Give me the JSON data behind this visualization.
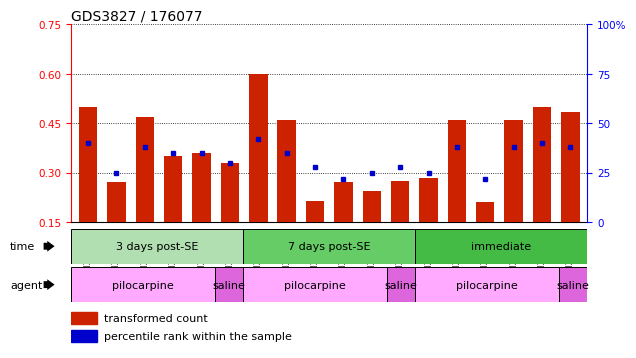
{
  "title": "GDS3827 / 176077",
  "samples": [
    "GSM367527",
    "GSM367528",
    "GSM367531",
    "GSM367532",
    "GSM367534",
    "GSM367718",
    "GSM367536",
    "GSM367538",
    "GSM367539",
    "GSM367540",
    "GSM367541",
    "GSM367719",
    "GSM367545",
    "GSM367546",
    "GSM367548",
    "GSM367549",
    "GSM367551",
    "GSM367721"
  ],
  "red_values": [
    0.5,
    0.27,
    0.47,
    0.35,
    0.36,
    0.33,
    0.6,
    0.46,
    0.215,
    0.27,
    0.245,
    0.275,
    0.285,
    0.46,
    0.21,
    0.46,
    0.5,
    0.485
  ],
  "blue_pct": [
    40,
    25,
    38,
    35,
    35,
    30,
    42,
    35,
    28,
    22,
    25,
    28,
    25,
    38,
    22,
    38,
    40,
    38
  ],
  "time_groups": [
    {
      "label": "3 days post-SE",
      "start": 0,
      "end": 6,
      "color": "#b2dfb2"
    },
    {
      "label": "7 days post-SE",
      "start": 6,
      "end": 12,
      "color": "#66cc66"
    },
    {
      "label": "immediate",
      "start": 12,
      "end": 18,
      "color": "#44bb44"
    }
  ],
  "agent_groups": [
    {
      "label": "pilocarpine",
      "start": 0,
      "end": 5,
      "color": "#ffaaff"
    },
    {
      "label": "saline",
      "start": 5,
      "end": 6,
      "color": "#dd66dd"
    },
    {
      "label": "pilocarpine",
      "start": 6,
      "end": 11,
      "color": "#ffaaff"
    },
    {
      "label": "saline",
      "start": 11,
      "end": 12,
      "color": "#dd66dd"
    },
    {
      "label": "pilocarpine",
      "start": 12,
      "end": 17,
      "color": "#ffaaff"
    },
    {
      "label": "saline",
      "start": 17,
      "end": 18,
      "color": "#dd66dd"
    }
  ],
  "ylim_left": [
    0.15,
    0.75
  ],
  "ylim_right": [
    0,
    100
  ],
  "yticks_left": [
    0.15,
    0.3,
    0.45,
    0.6,
    0.75
  ],
  "yticks_right": [
    0,
    25,
    50,
    75,
    100
  ],
  "bar_color": "#cc2200",
  "dot_color": "#0000cc",
  "legend_items": [
    {
      "label": "transformed count",
      "color": "#cc2200"
    },
    {
      "label": "percentile rank within the sample",
      "color": "#0000cc"
    }
  ]
}
